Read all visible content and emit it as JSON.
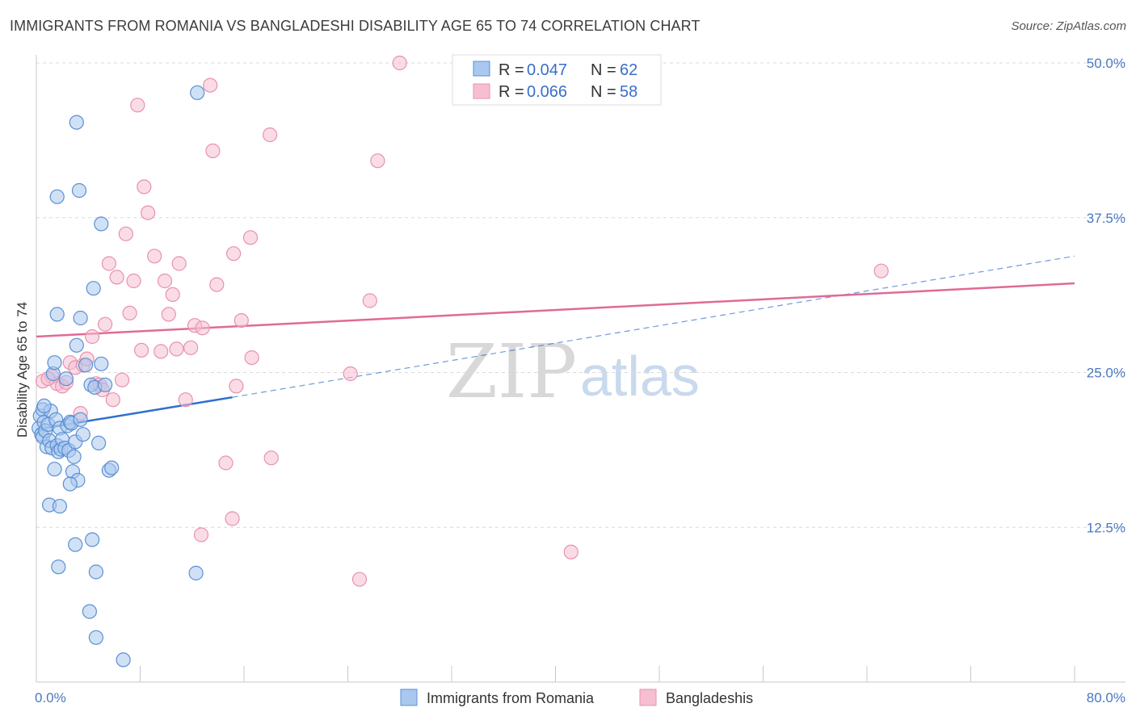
{
  "header": {
    "title": "IMMIGRANTS FROM ROMANIA VS BANGLADESHI DISABILITY AGE 65 TO 74 CORRELATION CHART",
    "source": "Source: ZipAtlas.com"
  },
  "watermark": {
    "zip": "ZIP",
    "atlas": "atlas"
  },
  "legend": {
    "rows": [
      {
        "r_label": "R = ",
        "r_value": "0.047",
        "n_label": "N = ",
        "n_value": "62"
      },
      {
        "r_label": "R = ",
        "r_value": "0.066",
        "n_label": "N = ",
        "n_value": "58"
      }
    ]
  },
  "bottom_legend": {
    "items": [
      "Immigrants from Romania",
      "Bangladeshis"
    ]
  },
  "colors": {
    "blue_fill": "#a9c8ef",
    "blue_stroke": "#5b8fd4",
    "blue_line": "#2f6fce",
    "pink_fill": "#f6bfd1",
    "pink_stroke": "#e891b0",
    "pink_line": "#e06a96",
    "grid": "#d9d9d9",
    "tick_text": "#4a78c2"
  },
  "chart_data": {
    "type": "scatter",
    "title": "IMMIGRANTS FROM ROMANIA VS BANGLADESHI DISABILITY AGE 65 TO 74 CORRELATION CHART",
    "xlabel": "",
    "ylabel": "Disability Age 65 to 74",
    "xlim": [
      0,
      80
    ],
    "ylim": [
      0,
      50
    ],
    "x_tick_labels": [
      "0.0%",
      "80.0%"
    ],
    "y_ticks": [
      12.5,
      25.0,
      37.5,
      50.0
    ],
    "y_tick_labels": [
      "12.5%",
      "25.0%",
      "37.5%",
      "50.0%"
    ],
    "series": [
      {
        "name": "Immigrants from Romania",
        "color": "blue",
        "R": 0.047,
        "N": 62,
        "points": [
          [
            0.2,
            20.5
          ],
          [
            0.3,
            21.5
          ],
          [
            0.4,
            20.0
          ],
          [
            0.5,
            22.0
          ],
          [
            0.5,
            19.8
          ],
          [
            0.6,
            21.0
          ],
          [
            0.7,
            20.3
          ],
          [
            0.8,
            19.0
          ],
          [
            0.9,
            20.8
          ],
          [
            1.0,
            19.5
          ],
          [
            1.1,
            21.9
          ],
          [
            1.2,
            18.9
          ],
          [
            1.3,
            24.9
          ],
          [
            1.4,
            25.8
          ],
          [
            1.5,
            21.2
          ],
          [
            1.6,
            19.1
          ],
          [
            1.7,
            18.6
          ],
          [
            1.8,
            20.5
          ],
          [
            1.9,
            18.8
          ],
          [
            2.0,
            19.6
          ],
          [
            2.2,
            18.9
          ],
          [
            2.4,
            20.7
          ],
          [
            2.5,
            18.7
          ],
          [
            2.6,
            21.0
          ],
          [
            2.7,
            20.9
          ],
          [
            2.8,
            17.0
          ],
          [
            2.9,
            18.2
          ],
          [
            3.0,
            19.4
          ],
          [
            3.2,
            16.3
          ],
          [
            3.4,
            21.2
          ],
          [
            3.6,
            20.0
          ],
          [
            3.8,
            25.6
          ],
          [
            4.2,
            24.0
          ],
          [
            4.5,
            23.8
          ],
          [
            4.8,
            19.3
          ],
          [
            5.0,
            25.7
          ],
          [
            5.3,
            24.0
          ],
          [
            5.6,
            17.1
          ],
          [
            5.8,
            17.3
          ],
          [
            1.0,
            14.3
          ],
          [
            1.8,
            14.2
          ],
          [
            2.6,
            16.0
          ],
          [
            1.4,
            17.2
          ],
          [
            3.1,
            27.2
          ],
          [
            3.4,
            29.4
          ],
          [
            1.6,
            29.7
          ],
          [
            4.4,
            31.8
          ],
          [
            5.0,
            37.0
          ],
          [
            1.6,
            39.2
          ],
          [
            3.3,
            39.7
          ],
          [
            3.1,
            45.2
          ],
          [
            12.4,
            47.6
          ],
          [
            3.0,
            11.1
          ],
          [
            4.3,
            11.5
          ],
          [
            1.7,
            9.3
          ],
          [
            4.6,
            8.9
          ],
          [
            12.3,
            8.8
          ],
          [
            4.1,
            5.7
          ],
          [
            4.6,
            3.6
          ],
          [
            6.7,
            1.8
          ],
          [
            2.3,
            24.5
          ],
          [
            0.6,
            22.3
          ]
        ]
      },
      {
        "name": "Bangladeshis",
        "color": "pink",
        "R": 0.066,
        "N": 58,
        "points": [
          [
            0.5,
            24.3
          ],
          [
            1.2,
            24.7
          ],
          [
            1.6,
            24.1
          ],
          [
            2.0,
            23.9
          ],
          [
            2.3,
            24.2
          ],
          [
            2.6,
            25.8
          ],
          [
            3.0,
            25.4
          ],
          [
            3.4,
            21.7
          ],
          [
            3.6,
            25.6
          ],
          [
            3.9,
            26.1
          ],
          [
            4.3,
            27.9
          ],
          [
            4.6,
            24.1
          ],
          [
            4.9,
            24.0
          ],
          [
            5.1,
            23.6
          ],
          [
            5.3,
            28.9
          ],
          [
            5.6,
            33.8
          ],
          [
            5.9,
            22.8
          ],
          [
            6.2,
            32.7
          ],
          [
            6.6,
            24.4
          ],
          [
            6.9,
            36.2
          ],
          [
            7.2,
            29.8
          ],
          [
            7.5,
            32.4
          ],
          [
            7.8,
            46.6
          ],
          [
            8.1,
            26.8
          ],
          [
            8.3,
            40.0
          ],
          [
            8.6,
            37.9
          ],
          [
            9.1,
            34.4
          ],
          [
            9.6,
            26.7
          ],
          [
            9.9,
            32.4
          ],
          [
            10.2,
            29.7
          ],
          [
            10.5,
            31.3
          ],
          [
            10.8,
            26.9
          ],
          [
            11.0,
            33.8
          ],
          [
            11.5,
            22.8
          ],
          [
            11.9,
            27.0
          ],
          [
            12.2,
            28.8
          ],
          [
            12.7,
            11.9
          ],
          [
            12.8,
            28.6
          ],
          [
            13.4,
            48.2
          ],
          [
            13.6,
            42.9
          ],
          [
            13.9,
            32.1
          ],
          [
            14.6,
            17.7
          ],
          [
            15.1,
            13.2
          ],
          [
            15.2,
            34.6
          ],
          [
            15.4,
            23.9
          ],
          [
            15.8,
            29.2
          ],
          [
            16.5,
            35.9
          ],
          [
            16.6,
            26.2
          ],
          [
            18.0,
            44.2
          ],
          [
            18.1,
            18.1
          ],
          [
            24.2,
            24.9
          ],
          [
            24.9,
            8.3
          ],
          [
            25.7,
            30.8
          ],
          [
            26.3,
            42.1
          ],
          [
            28.0,
            50.0
          ],
          [
            41.2,
            10.5
          ],
          [
            65.1,
            33.2
          ],
          [
            0.9,
            24.5
          ]
        ]
      }
    ],
    "trend_lines": [
      {
        "series": "Immigrants from Romania",
        "solid_from": [
          0,
          20.4
        ],
        "solid_to": [
          15.1,
          23.0
        ],
        "dashed_to": [
          80,
          34.4
        ]
      },
      {
        "series": "Bangladeshis",
        "from": [
          0,
          27.9
        ],
        "to": [
          80,
          32.2
        ]
      }
    ]
  }
}
